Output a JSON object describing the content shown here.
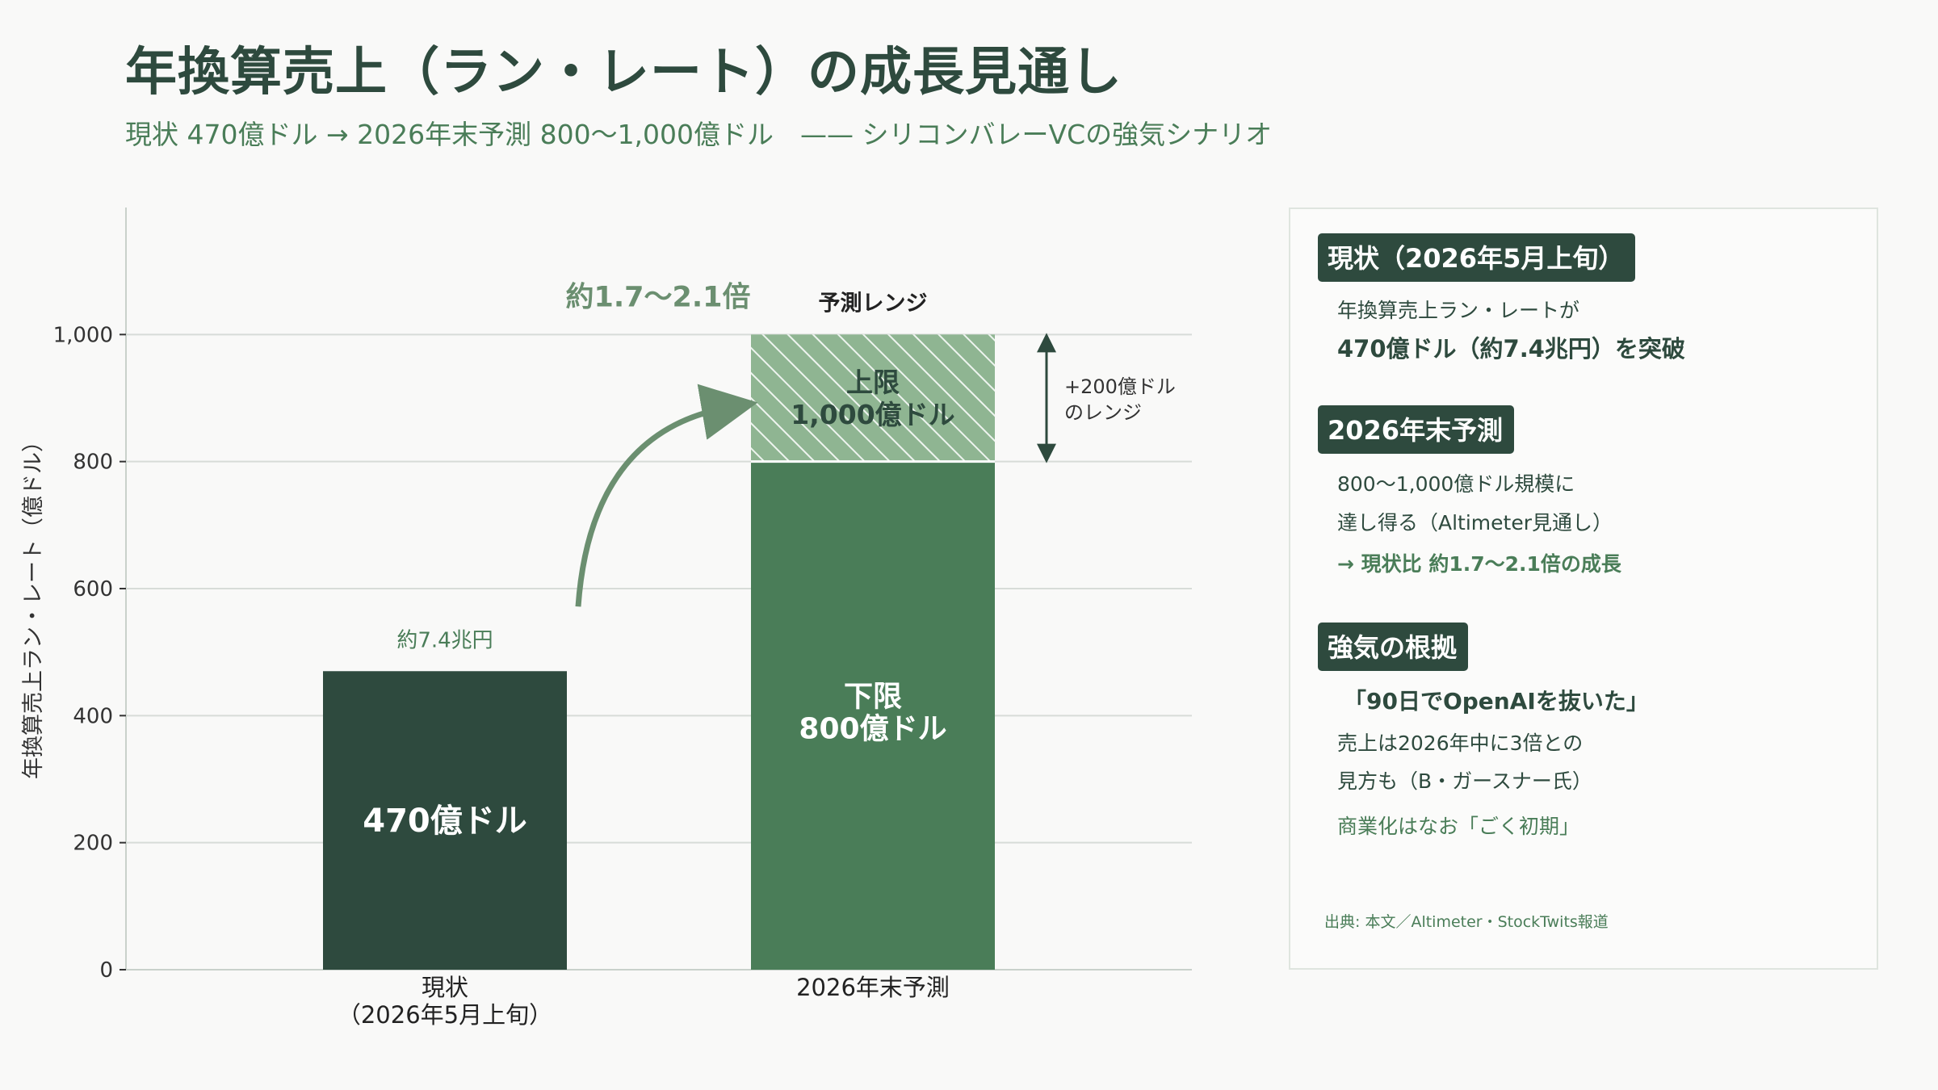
{
  "title": "年換算売上（ラン・レート）の成長見通し",
  "subtitle": "現状 470億ドル → 2026年末予測 800〜1,000億ドル　—— シリコンバレーVCの強気シナリオ",
  "colors": {
    "current_bar": "#2e4a3e",
    "forecast_bar": "#4a7d58",
    "range_bar": "#8fb592",
    "accent": "#4a7d58",
    "arrow": "#6b8f70"
  },
  "chart_data": {
    "type": "bar",
    "categories": [
      "現状\n（2026年5月上旬）",
      "2026年末予測"
    ],
    "ylabel": "年換算売上ラン・レート（億ドル）",
    "ylim": [
      0,
      1200
    ],
    "yticks": [
      0,
      200,
      400,
      600,
      800,
      1000
    ],
    "ytick_labels": [
      "0",
      "200",
      "400",
      "600",
      "800",
      "1,000"
    ],
    "grid": true,
    "series": [
      {
        "values": [
          470,
          800
        ]
      },
      {
        "values": [
          0,
          200
        ]
      }
    ],
    "bar_labels": {
      "current": "470億ドル",
      "current_above": "約7.4兆円",
      "lower": "下限\n800億ドル",
      "upper": "上限\n1,000億ドル",
      "range_header": "予測レンジ",
      "range_note": "+200億ドル\nのレンジ",
      "growth": "約1.7〜2.1倍"
    }
  },
  "panel": {
    "sections": [
      {
        "badge": "現状（2026年5月上旬）",
        "lines": [
          "年換算売上ラン・レートが",
          "470億ドル（約7.4兆円）を突破"
        ]
      },
      {
        "badge": "2026年末予測",
        "lines": [
          "800〜1,000億ドル規模に",
          "達し得る（Altimeter見通し）",
          "→ 現状比 約1.7〜2.1倍の成長"
        ]
      },
      {
        "badge": "強気の根拠",
        "lines": [
          "「90日でOpenAIを抜いた」",
          "売上は2026年中に3倍との",
          "見方も（B・ガースナー氏）",
          "商業化はなお「ごく初期」"
        ]
      }
    ],
    "source": "出典: 本文／Altimeter・StockTwits報道"
  }
}
